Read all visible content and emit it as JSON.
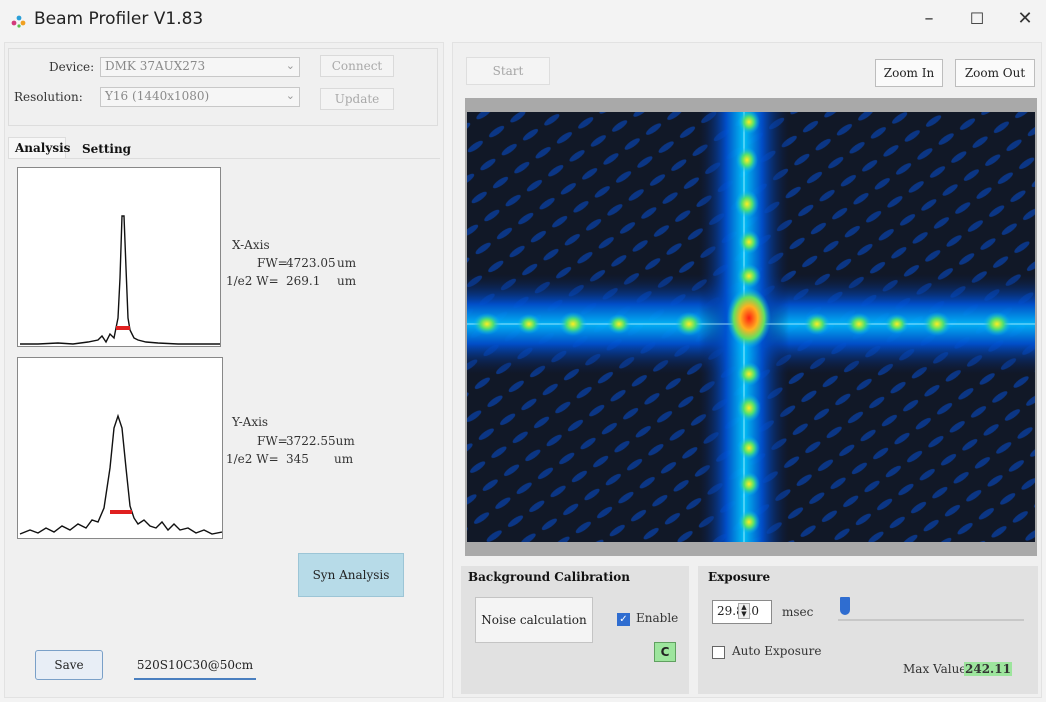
{
  "window": {
    "title": "Beam Profiler V1.83",
    "minimize_glyph": "–",
    "maximize_glyph": "☐",
    "close_glyph": "✕"
  },
  "device_panel": {
    "device_label": "Device:",
    "device_value": "DMK 37AUX273",
    "resolution_label": "Resolution:",
    "resolution_value": "Y16 (1440x1080)",
    "connect_label": "Connect",
    "update_label": "Update"
  },
  "tabs": [
    {
      "label": "Analysis",
      "active": true
    },
    {
      "label": "Setting",
      "active": false
    }
  ],
  "x_axis": {
    "title": "X-Axis",
    "fw_label": "FW=",
    "fw_value": "4723.05",
    "fw_unit": "um",
    "w_label": "1/e2 W=",
    "w_value": "269.1",
    "w_unit": "um"
  },
  "y_axis": {
    "title": "Y-Axis",
    "fw_label": "FW=",
    "fw_value": "3722.55um",
    "w_label": "1/e2 W=",
    "w_value": "345",
    "w_unit": "um"
  },
  "buttons": {
    "syn_analysis": "Syn Analysis",
    "save": "Save",
    "start": "Start",
    "zoom_in": "Zoom In",
    "zoom_out": "Zoom Out"
  },
  "filename": "520S10C30@50cm",
  "background_calibration": {
    "title": "Background Calibration",
    "noise_button": "Noise calculation",
    "enable_label": "Enable",
    "enable_checked": true,
    "c_button": "C"
  },
  "exposure": {
    "title": "Exposure",
    "value": "29.820",
    "unit": "msec",
    "auto_label": "Auto Exposure",
    "auto_checked": false,
    "slider_level": 0.02,
    "max_value_label": "Max Value:",
    "max_value": "242.11"
  },
  "colors": {
    "accent_blue": "#2f6dd0",
    "green_badge": "#9de59d",
    "syn_button": "#b7dbe8",
    "plot_peak_marker": "#e02020"
  },
  "icons": {
    "app": "beam-dots-icon",
    "spin": "up-down-arrows-icon",
    "dropdown": "chevron-down-icon"
  }
}
